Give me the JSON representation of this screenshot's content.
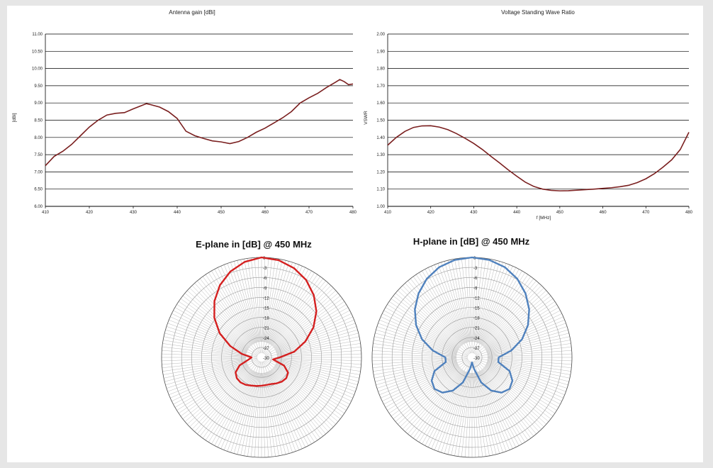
{
  "colors": {
    "line_chart": "#7a1f1f",
    "e_plane": "#d42020",
    "h_plane": "#4f81bd",
    "grid": "#000000",
    "polar_grid": "#9a9a9a"
  },
  "chart_data": [
    {
      "type": "line",
      "title": "Antenna gain [dBi]",
      "xlabel": "",
      "ylabel": "[dBi]",
      "xlim": [
        410,
        480
      ],
      "ylim": [
        6.0,
        11.0
      ],
      "xticks": [
        "410",
        "420",
        "430",
        "440",
        "450",
        "460",
        "470",
        "480"
      ],
      "yticks": [
        "6.00",
        "6.50",
        "7.00",
        "7.50",
        "8.00",
        "8.50",
        "9.00",
        "9.50",
        "10.00",
        "10.50",
        "11.00"
      ],
      "grid": "horizontal",
      "series": [
        {
          "x": [
            410,
            412,
            414,
            416,
            418,
            420,
            422,
            424,
            426,
            428,
            430,
            432,
            433,
            434,
            436,
            438,
            440,
            442,
            444,
            446,
            448,
            450,
            452,
            454,
            456,
            458,
            460,
            462,
            464,
            466,
            468,
            470,
            472,
            474,
            476,
            477,
            478,
            479,
            480
          ],
          "y": [
            7.18,
            7.45,
            7.6,
            7.8,
            8.05,
            8.3,
            8.5,
            8.65,
            8.7,
            8.72,
            8.83,
            8.93,
            8.98,
            8.95,
            8.88,
            8.75,
            8.55,
            8.18,
            8.05,
            7.97,
            7.9,
            7.87,
            7.82,
            7.88,
            8.0,
            8.15,
            8.27,
            8.42,
            8.57,
            8.75,
            9.0,
            9.15,
            9.28,
            9.45,
            9.6,
            9.68,
            9.62,
            9.53,
            9.55
          ]
        }
      ]
    },
    {
      "type": "line",
      "title": "Voltage Standing Wave Ratio",
      "xlabel": "f [MHz]",
      "ylabel": "VSWR",
      "xlim": [
        410,
        480
      ],
      "ylim": [
        1.0,
        2.0
      ],
      "xticks": [
        "410",
        "420",
        "430",
        "440",
        "450",
        "460",
        "470",
        "480"
      ],
      "yticks": [
        "1.00",
        "1.10",
        "1.20",
        "1.30",
        "1.40",
        "1.50",
        "1.60",
        "1.70",
        "1.80",
        "1.90",
        "2.00"
      ],
      "grid": "horizontal",
      "series": [
        {
          "x": [
            410,
            412,
            414,
            416,
            418,
            420,
            422,
            424,
            426,
            428,
            430,
            432,
            434,
            436,
            438,
            440,
            442,
            444,
            446,
            448,
            450,
            452,
            454,
            456,
            458,
            460,
            462,
            464,
            466,
            468,
            470,
            472,
            474,
            476,
            478,
            480
          ],
          "y": [
            1.355,
            1.4,
            1.435,
            1.458,
            1.467,
            1.468,
            1.46,
            1.445,
            1.422,
            1.395,
            1.365,
            1.33,
            1.29,
            1.252,
            1.212,
            1.175,
            1.14,
            1.115,
            1.1,
            1.093,
            1.09,
            1.091,
            1.094,
            1.097,
            1.1,
            1.104,
            1.108,
            1.114,
            1.122,
            1.138,
            1.16,
            1.19,
            1.228,
            1.27,
            1.33,
            1.43
          ]
        }
      ]
    },
    {
      "type": "polar",
      "title": "E-plane in [dB]  @ 450 MHz",
      "rlim": [
        -30,
        0
      ],
      "rticks": [
        "0",
        "-3",
        "-6",
        "-9",
        "-12",
        "-15",
        "-18",
        "-21",
        "-24",
        "-27",
        "-30"
      ],
      "series": [
        {
          "theta_deg": [
            0,
            10,
            20,
            30,
            40,
            50,
            60,
            70,
            80,
            90,
            100,
            110,
            120,
            130,
            140,
            150,
            160,
            170,
            180,
            190,
            200,
            210,
            220,
            230,
            240,
            250,
            260,
            270,
            280,
            290,
            300,
            310,
            320,
            330,
            340,
            350,
            360
          ],
          "db": [
            0,
            -0.4,
            -1.5,
            -3.2,
            -5.6,
            -8.5,
            -12,
            -16,
            -20,
            -24.5,
            -26.5,
            -22.8,
            -20.8,
            -20.3,
            -20.5,
            -21,
            -21.5,
            -21.6,
            -21.5,
            -21.3,
            -21,
            -20.5,
            -20.2,
            -20.3,
            -21,
            -23,
            -26,
            -27,
            -24,
            -20,
            -15.5,
            -11.5,
            -8,
            -5,
            -2.6,
            -0.9,
            0
          ]
        }
      ]
    },
    {
      "type": "polar",
      "title": "H-plane in [dB]  @ 450 MHz",
      "rlim": [
        -30,
        0
      ],
      "rticks": [
        "0",
        "-3",
        "-6",
        "-9",
        "-12",
        "-15",
        "-18",
        "-21",
        "-24",
        "-27",
        "-30"
      ],
      "series": [
        {
          "theta_deg": [
            0,
            10,
            20,
            30,
            40,
            50,
            60,
            70,
            80,
            90,
            100,
            110,
            120,
            130,
            140,
            150,
            160,
            170,
            180,
            190,
            200,
            210,
            220,
            230,
            240,
            250,
            260,
            270,
            280,
            290,
            300,
            310,
            320,
            330,
            340,
            350,
            360
          ],
          "db": [
            0,
            -0.3,
            -1.2,
            -2.8,
            -5,
            -7.6,
            -10.6,
            -14,
            -18,
            -22,
            -22,
            -18,
            -16,
            -15.3,
            -16.2,
            -18.5,
            -22,
            -26.5,
            -28.5,
            -26.5,
            -22,
            -18.5,
            -16.2,
            -15.3,
            -16,
            -18,
            -22,
            -22,
            -18,
            -14,
            -10.6,
            -7.6,
            -5,
            -2.8,
            -1.2,
            -0.3,
            0
          ]
        }
      ]
    }
  ]
}
